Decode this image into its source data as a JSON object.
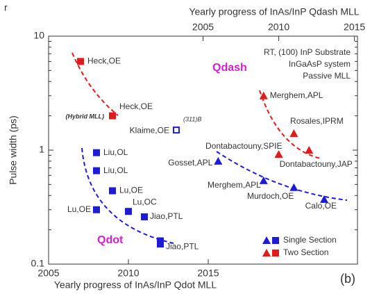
{
  "chart_data": {
    "type": "scatter",
    "panel_letter": "r",
    "panel_tag": "(b)",
    "xlabel": "Yearly progress of InAs/InP Qdot MLL",
    "x2label": "Yearly progress of InAs/InP Qdash MLL",
    "ylabel": "Pulse width (ps)",
    "yscale": "log",
    "xlim": [
      2005,
      2024.35
    ],
    "xticks": [
      2005,
      2010,
      2015
    ],
    "x2lim": [
      1994.8,
      2015.2
    ],
    "x2ticks": [
      2005,
      2010,
      2015
    ],
    "ylim": [
      0.1,
      10
    ],
    "yticks": [
      0.1,
      1,
      10
    ],
    "yminor_ticks": [
      0.2,
      0.3,
      0.4,
      0.5,
      0.6,
      0.7,
      0.8,
      0.9,
      2,
      3,
      4,
      5,
      6,
      7,
      8,
      9
    ],
    "series": [
      {
        "name": "Single Section",
        "color": "#1c1cd8",
        "marker": "square",
        "xaxis": "x",
        "x": [
          2008,
          2008,
          2009,
          2008,
          2010,
          2011,
          2012,
          2012
        ],
        "values": [
          0.95,
          0.66,
          0.44,
          0.3,
          0.29,
          0.26,
          0.16,
          0.15
        ],
        "labels": [
          "Liu,OL",
          "Liu,OL",
          "Lu,OE",
          "Lu,OE",
          "Lu,OC",
          "Jiao,PTL",
          null,
          "Jiao,PTL"
        ]
      },
      {
        "name": "Two Section",
        "color": "#e01b1b",
        "marker": "square",
        "xaxis": "x",
        "x": [
          2007,
          2009
        ],
        "values": [
          6.0,
          2.0
        ],
        "labels": [
          "Heck,OE",
          "Heck,OE"
        ]
      },
      {
        "color": "#1c1cd8",
        "marker": "triangle",
        "xaxis": "x2",
        "x": [
          2006,
          2009,
          2011,
          2013
        ],
        "values": [
          0.8,
          0.54,
          0.47,
          0.37
        ],
        "labels": [
          "Gosset,APL",
          "Merghem,APL",
          "Murdoch,OE",
          "Calo,OE"
        ]
      },
      {
        "color": "#e01b1b",
        "marker": "triangle",
        "xaxis": "x2",
        "x": [
          2009,
          2011,
          2010,
          2012
        ],
        "values": [
          3.0,
          1.4,
          0.92,
          1.0
        ],
        "labels": [
          "Merghem,APL",
          "Rosales,IPRM",
          "Dontabactouny,JAP",
          null
        ]
      },
      {
        "color": "#1c1cd8",
        "marker": "open-square",
        "xaxis": "x",
        "x": [
          2013
        ],
        "values": [
          1.5
        ],
        "labels": [
          "Klaime,OE"
        ]
      }
    ],
    "annotations": [
      "(Hybrid MLL)",
      "(311)B",
      "Dontabactouny,SPIE",
      "Qdash",
      "Qdot"
    ],
    "info_box": [
      "RT, (100) InP Substrate",
      "InGaAsP system",
      "Passive MLL"
    ]
  }
}
